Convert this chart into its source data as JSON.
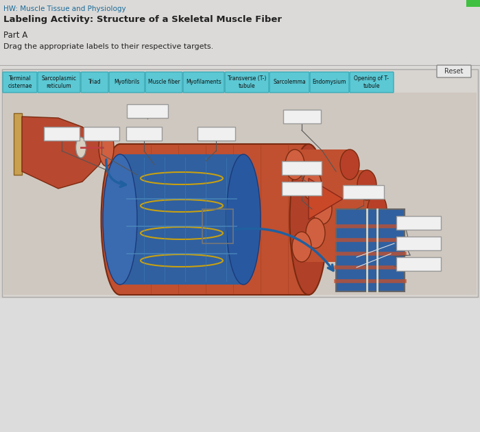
{
  "title1": "HW: Muscle Tissue and Physiology",
  "title2": "Labeling Activity: Structure of a Skeletal Muscle Fiber",
  "part": "Part A",
  "instruction": "Drag the appropriate labels to their respective targets.",
  "bg_color": "#dcdcdc",
  "header_bg": "#e0dede",
  "content_bg": "#d8d4d0",
  "label_buttons": [
    "Terminal\ncisternae",
    "Sarcoplasmic\nreticulum",
    "Triad",
    "Myofibrils",
    "Muscle fiber",
    "Myofilaments",
    "Transverse (T-)\ntubule",
    "Sarcolemma",
    "Endomysium",
    "Opening of T-\ntubule"
  ],
  "button_color": "#5bc8d4",
  "button_text_color": "#111111",
  "reset_button": "Reset",
  "empty_box_color": "#f0f0f0",
  "empty_box_edge": "#999999",
  "title1_color": "#1a6b9a",
  "title2_color": "#222222",
  "part_color": "#222222",
  "instruction_color": "#222222",
  "img_bg": "#c8b8a8",
  "muscle_color": "#b8502a",
  "muscle_dark": "#7a2a10",
  "blue_color": "#4070b0",
  "blue_dark": "#1a3a7a",
  "bone_color": "#c8a050",
  "arrow_color": "#2060a0"
}
